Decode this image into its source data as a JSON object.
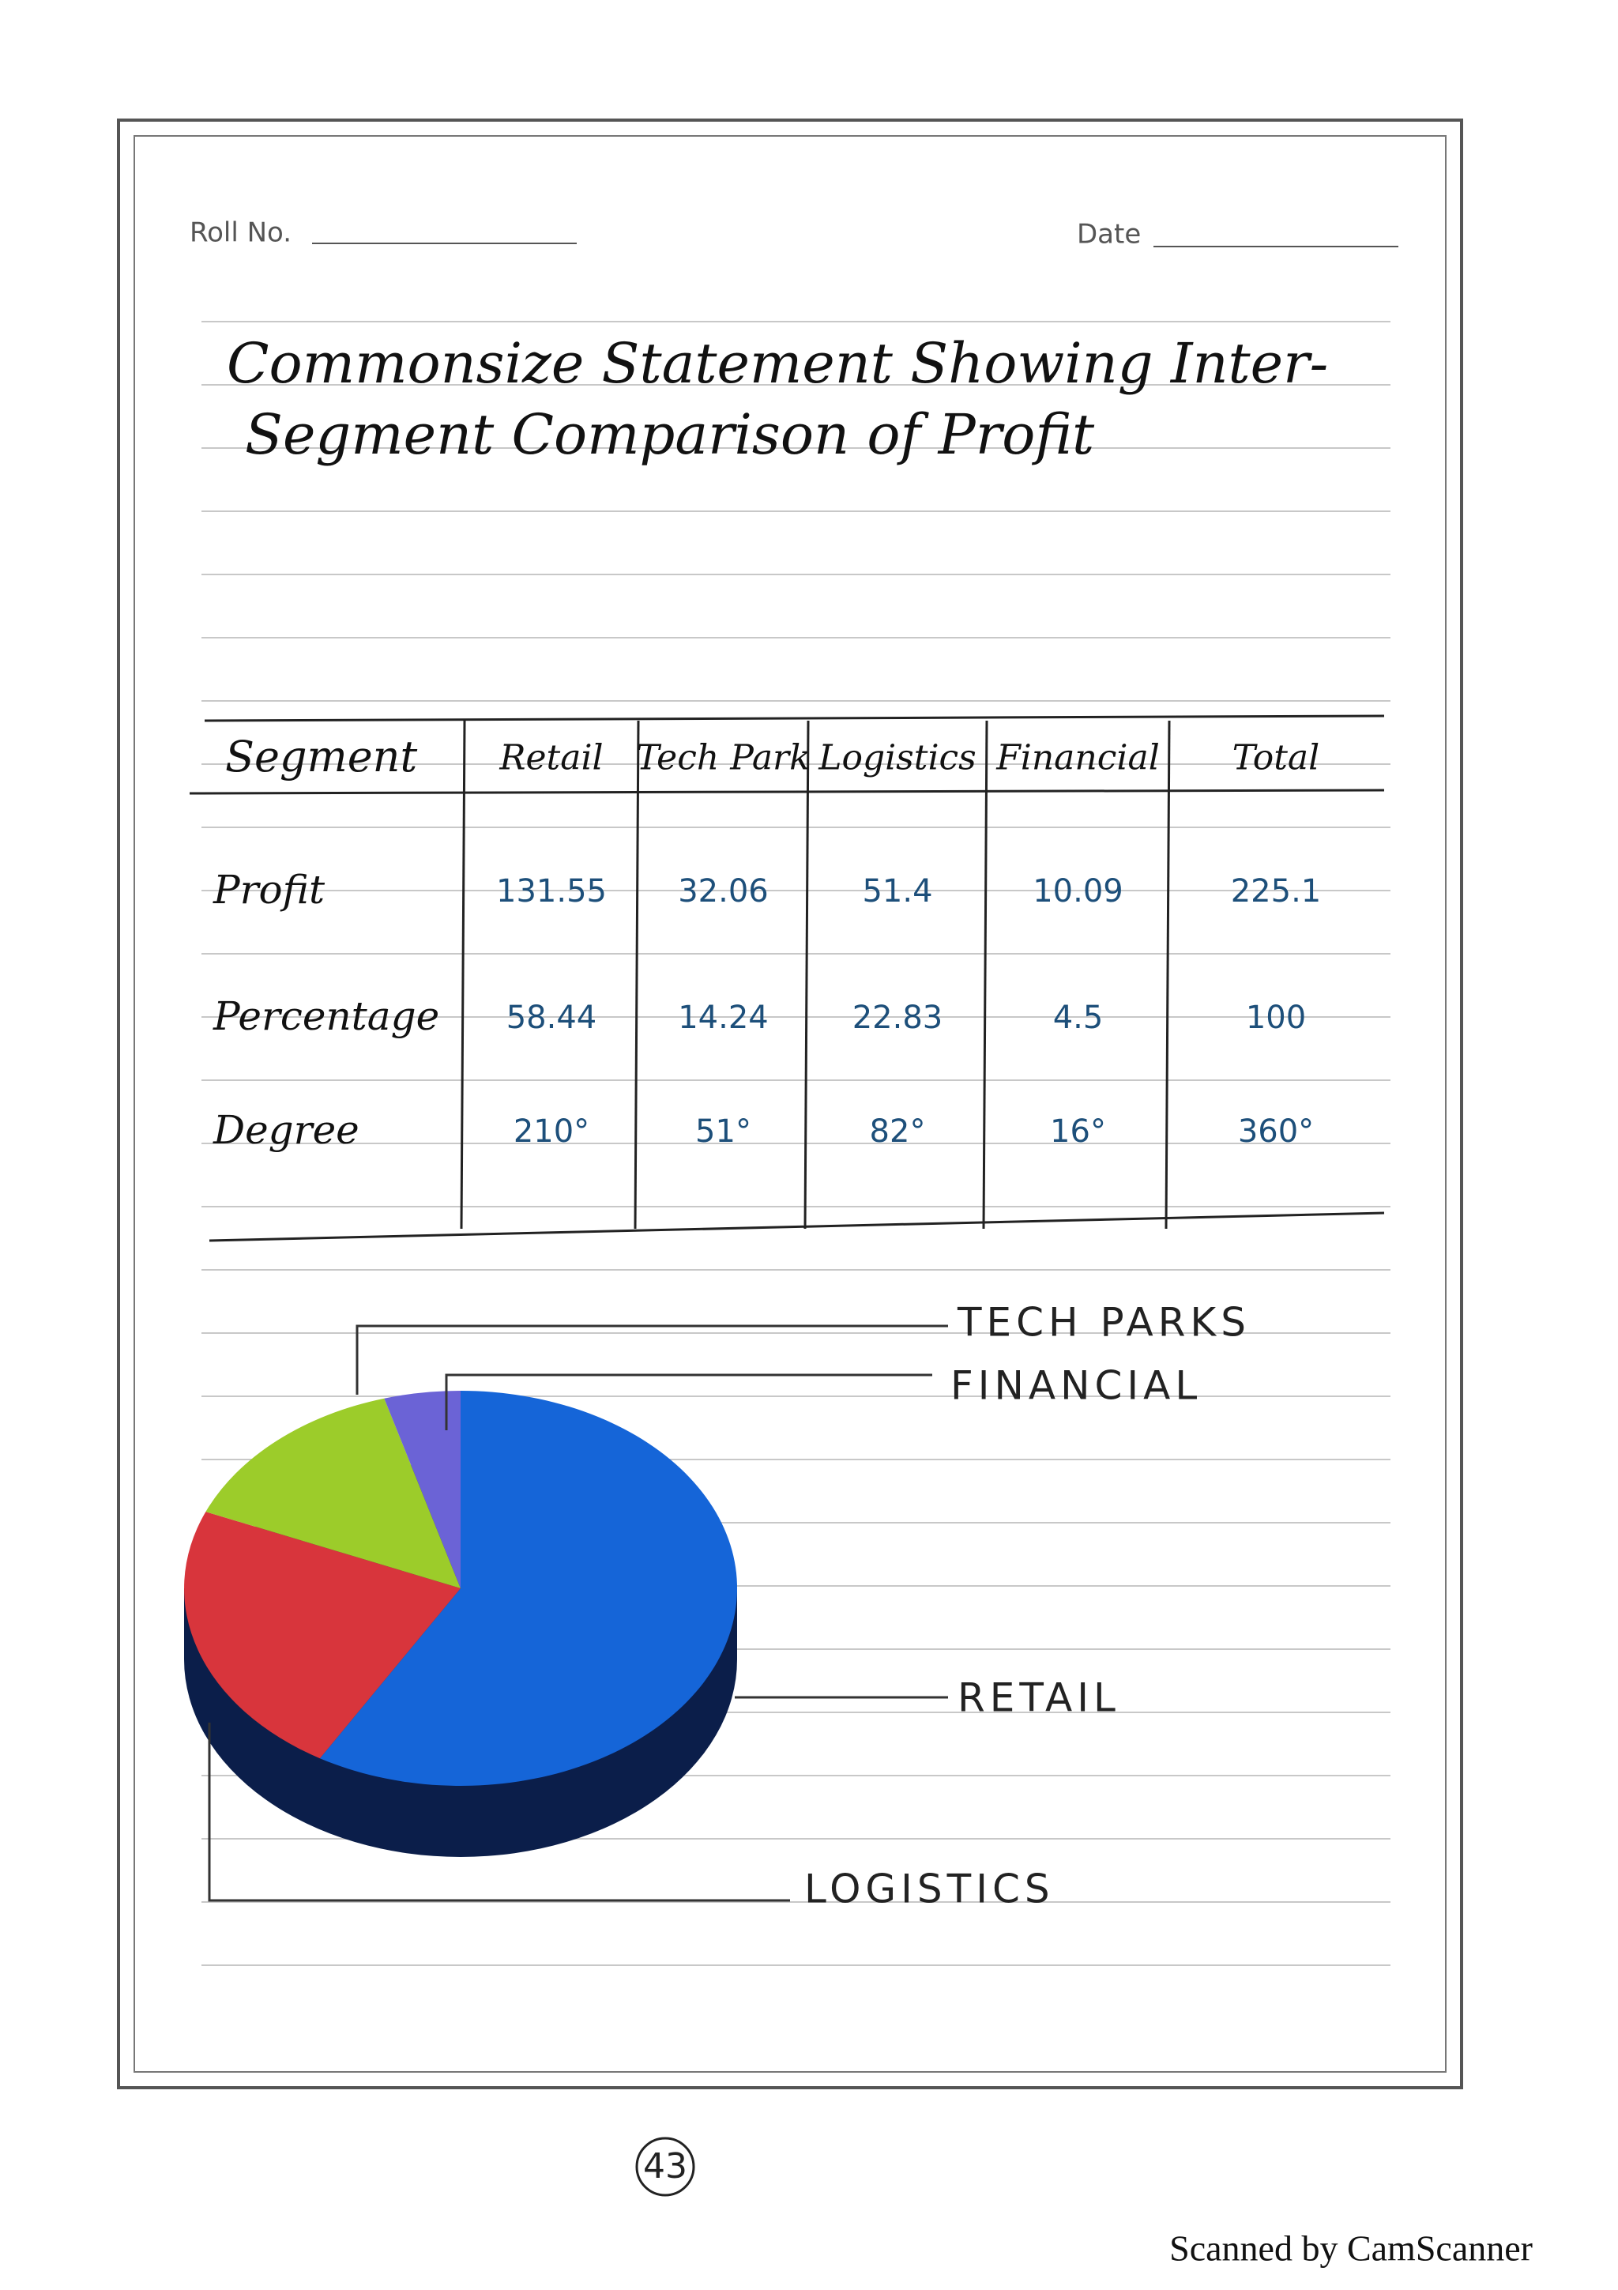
{
  "header": {
    "roll_no": "Roll No.",
    "date": "Date"
  },
  "title": [
    "Commonsize Statement Showing Inter-",
    "Segment Comparison of Profit"
  ],
  "table": {
    "header": [
      "Segment",
      "Retail",
      "Tech Park",
      "Logistics",
      "Financial",
      "Total"
    ],
    "rows": [
      [
        "Profit",
        "131.55",
        "32.06",
        "51.4",
        "10.09",
        "225.1"
      ],
      [
        "Percentage",
        "58.44",
        "14.24",
        "22.83",
        "4.5",
        "100"
      ],
      [
        "Degree",
        "210°",
        "51°",
        "82°",
        "16°",
        "360°"
      ]
    ]
  },
  "chart_data": {
    "type": "pie",
    "categories": [
      "RETAIL",
      "LOGISTICS",
      "TECH PARKS",
      "FINANCIAL"
    ],
    "values": [
      210,
      82,
      51,
      16
    ],
    "colors": [
      "#1565d8",
      "#d8353c",
      "#9ccc2a",
      "#6b63d6"
    ]
  },
  "page_number": "43",
  "footer": "Scanned by CamScanner"
}
